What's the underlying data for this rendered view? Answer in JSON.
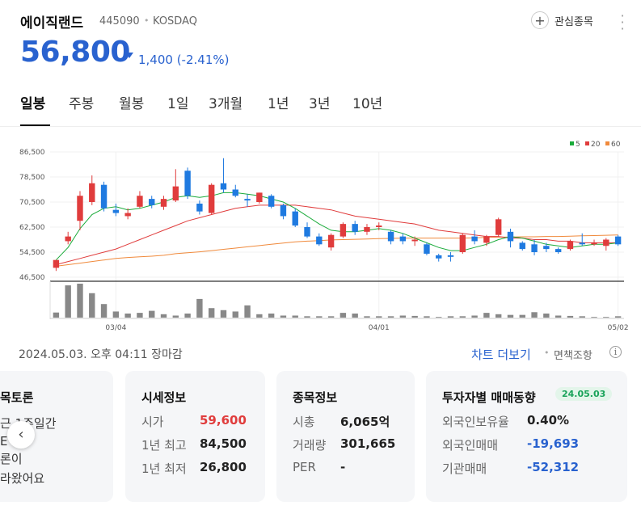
{
  "header": {
    "stock_name": "에이직랜드",
    "stock_code": "445090",
    "separator": "•",
    "market": "KOSDAQ",
    "favorite_label": "관심종목",
    "favorite_icon": "plus-icon",
    "more_icon": "more-vertical-icon"
  },
  "price": {
    "current": "56,800",
    "change": "1,400 (-2.41%)",
    "direction": "down",
    "color": "#2962cf"
  },
  "tabs": [
    "일봉",
    "주봉",
    "월봉",
    "1일",
    "3개월",
    "1년",
    "3년",
    "10년"
  ],
  "active_tab": "일봉",
  "chart_data": {
    "type": "candlestick",
    "legend": [
      {
        "name": "5",
        "color": "#1aab3a"
      },
      {
        "name": "20",
        "color": "#e03c3c"
      },
      {
        "name": "60",
        "color": "#f08a3c"
      }
    ],
    "legend_position": "top-right",
    "y_ticks": [
      "86,500",
      "78,500",
      "70,500",
      "62,500",
      "54,500",
      "46,500"
    ],
    "ylim": [
      46500,
      86500
    ],
    "x_ticks": [
      "03/04",
      "04/01",
      "05/02"
    ],
    "up_color": "#e03c3c",
    "down_color": "#1f7ae0",
    "candles": [
      {
        "o": 49500,
        "h": 52000,
        "l": 48500,
        "c": 52000
      },
      {
        "o": 58000,
        "h": 61000,
        "l": 57000,
        "c": 59500
      },
      {
        "o": 64500,
        "h": 74000,
        "l": 61500,
        "c": 72500
      },
      {
        "o": 70500,
        "h": 79000,
        "l": 69500,
        "c": 76500
      },
      {
        "o": 76000,
        "h": 77000,
        "l": 67500,
        "c": 68500
      },
      {
        "o": 68000,
        "h": 70000,
        "l": 66000,
        "c": 67000
      },
      {
        "o": 66000,
        "h": 68500,
        "l": 65000,
        "c": 67000
      },
      {
        "o": 69000,
        "h": 74000,
        "l": 68500,
        "c": 72500
      },
      {
        "o": 71500,
        "h": 72500,
        "l": 68500,
        "c": 69500
      },
      {
        "o": 69000,
        "h": 72500,
        "l": 68000,
        "c": 71500
      },
      {
        "o": 71000,
        "h": 81000,
        "l": 70500,
        "c": 75500
      },
      {
        "o": 80500,
        "h": 81500,
        "l": 71500,
        "c": 72500
      },
      {
        "o": 70000,
        "h": 71000,
        "l": 66500,
        "c": 67500
      },
      {
        "o": 67000,
        "h": 76500,
        "l": 66500,
        "c": 76000
      },
      {
        "o": 76500,
        "h": 84500,
        "l": 73500,
        "c": 74500
      },
      {
        "o": 74500,
        "h": 76000,
        "l": 72000,
        "c": 72500
      },
      {
        "o": 71500,
        "h": 73000,
        "l": 69000,
        "c": 71000
      },
      {
        "o": 70500,
        "h": 73500,
        "l": 70000,
        "c": 73500
      },
      {
        "o": 72500,
        "h": 73000,
        "l": 68500,
        "c": 69000
      },
      {
        "o": 69500,
        "h": 70000,
        "l": 65000,
        "c": 66000
      },
      {
        "o": 67500,
        "h": 68500,
        "l": 62500,
        "c": 63000
      },
      {
        "o": 62500,
        "h": 64000,
        "l": 59000,
        "c": 59500
      },
      {
        "o": 59500,
        "h": 60500,
        "l": 56500,
        "c": 57000
      },
      {
        "o": 56000,
        "h": 60500,
        "l": 55000,
        "c": 60000
      },
      {
        "o": 59500,
        "h": 64000,
        "l": 59000,
        "c": 63500
      },
      {
        "o": 63500,
        "h": 64500,
        "l": 60000,
        "c": 61000
      },
      {
        "o": 61000,
        "h": 63500,
        "l": 60000,
        "c": 62500
      },
      {
        "o": 62500,
        "h": 64000,
        "l": 61500,
        "c": 63000
      },
      {
        "o": 61000,
        "h": 61500,
        "l": 57000,
        "c": 58000
      },
      {
        "o": 59500,
        "h": 60500,
        "l": 57000,
        "c": 58000
      },
      {
        "o": 58000,
        "h": 59500,
        "l": 56500,
        "c": 58500
      },
      {
        "o": 57000,
        "h": 57500,
        "l": 53500,
        "c": 54000
      },
      {
        "o": 53500,
        "h": 54000,
        "l": 51500,
        "c": 52500
      },
      {
        "o": 53500,
        "h": 54500,
        "l": 51500,
        "c": 53000
      },
      {
        "o": 54500,
        "h": 60500,
        "l": 54000,
        "c": 60000
      },
      {
        "o": 59500,
        "h": 61500,
        "l": 57000,
        "c": 58000
      },
      {
        "o": 57500,
        "h": 60000,
        "l": 56500,
        "c": 59500
      },
      {
        "o": 60000,
        "h": 65500,
        "l": 59500,
        "c": 65000
      },
      {
        "o": 61000,
        "h": 62000,
        "l": 56000,
        "c": 58000
      },
      {
        "o": 57500,
        "h": 58000,
        "l": 55000,
        "c": 55500
      },
      {
        "o": 57000,
        "h": 58500,
        "l": 53500,
        "c": 54500
      },
      {
        "o": 56500,
        "h": 57500,
        "l": 54500,
        "c": 55500
      },
      {
        "o": 55500,
        "h": 56000,
        "l": 54000,
        "c": 54500
      },
      {
        "o": 55500,
        "h": 58500,
        "l": 55000,
        "c": 58000
      },
      {
        "o": 57500,
        "h": 60500,
        "l": 56500,
        "c": 57000
      },
      {
        "o": 57000,
        "h": 58500,
        "l": 56500,
        "c": 57500
      },
      {
        "o": 56500,
        "h": 59000,
        "l": 55000,
        "c": 58500
      },
      {
        "o": 59500,
        "h": 60000,
        "l": 56500,
        "c": 57000
      }
    ],
    "ma5": [
      52000,
      56000,
      62000,
      66500,
      68500,
      69000,
      68000,
      68500,
      69500,
      70500,
      72000,
      72500,
      72000,
      72500,
      73500,
      73500,
      73000,
      72500,
      71500,
      70500,
      68500,
      66000,
      63500,
      61500,
      61000,
      61000,
      61500,
      62000,
      61500,
      60500,
      59000,
      57500,
      56000,
      55000,
      55000,
      56000,
      57000,
      58500,
      59500,
      59000,
      58000,
      57000,
      56500,
      56000,
      56500,
      57000,
      57000,
      57500
    ],
    "ma20": [
      50500,
      51500,
      52500,
      53500,
      54500,
      55500,
      57000,
      58500,
      60000,
      61500,
      63000,
      64500,
      65500,
      66500,
      67500,
      68500,
      69000,
      69500,
      69500,
      69500,
      69500,
      69000,
      68500,
      68000,
      67000,
      66000,
      65500,
      65000,
      64500,
      64000,
      63500,
      62500,
      61500,
      61000,
      60500,
      60000,
      59500,
      59500,
      59000,
      59000,
      58500,
      58500,
      58000,
      58000,
      57500,
      57500,
      57500,
      57500
    ],
    "ma60": [
      50000,
      50500,
      51000,
      51500,
      52000,
      52500,
      52800,
      53000,
      53200,
      53500,
      54000,
      54300,
      54600,
      55000,
      55400,
      55800,
      56200,
      56600,
      57000,
      57400,
      57800,
      58000,
      58200,
      58400,
      58500,
      58600,
      58700,
      58800,
      58900,
      59000,
      59000,
      59000,
      59000,
      59000,
      59000,
      59100,
      59200,
      59300,
      59300,
      59400,
      59400,
      59500,
      59500,
      59600,
      59700,
      59800,
      59900,
      60000
    ],
    "volume": [
      15,
      95,
      100,
      72,
      40,
      18,
      12,
      14,
      20,
      10,
      6,
      12,
      55,
      28,
      22,
      18,
      36,
      10,
      12,
      6,
      6,
      4,
      4,
      4,
      14,
      12,
      4,
      4,
      4,
      6,
      5,
      4,
      2,
      4,
      4,
      6,
      14,
      10,
      8,
      8,
      16,
      12,
      6,
      5,
      4,
      2,
      2,
      4
    ]
  },
  "timestamp": "2024.05.03. 오후 04:11 장마감",
  "chart_more_label": "차트 더보기",
  "sep": "•",
  "disclaimer_label": "면책조항",
  "info_icon_glyph": "i",
  "cards": {
    "discussion": {
      "title": "목토론",
      "line1": "근 1주일간",
      "line2": "E",
      "line3": "론이",
      "line4": "라왔어요"
    },
    "market": {
      "title": "시세정보",
      "rows": [
        {
          "label": "시가",
          "value": "59,600",
          "color": "#e03c3c"
        },
        {
          "label": "1년 최고",
          "value": "84,500",
          "color": "#222222"
        },
        {
          "label": "1년 최저",
          "value": "26,800",
          "color": "#222222"
        }
      ]
    },
    "stock": {
      "title": "종목정보",
      "rows": [
        {
          "label": "시총",
          "value": "6,065억"
        },
        {
          "label": "거래량",
          "value": "301,665"
        },
        {
          "label": "PER",
          "value": "-"
        }
      ]
    },
    "investor": {
      "title": "투자자별 매매동향",
      "badge": "24.05.03",
      "rows": [
        {
          "label": "외국인보유율",
          "value": "0.40%",
          "color": "#222222"
        },
        {
          "label": "외국인매매",
          "value": "-19,693",
          "color": "#2962cf"
        },
        {
          "label": "기관매매",
          "value": "-52,312",
          "color": "#2962cf"
        }
      ]
    }
  },
  "prev_icon": "chevron-left-icon"
}
